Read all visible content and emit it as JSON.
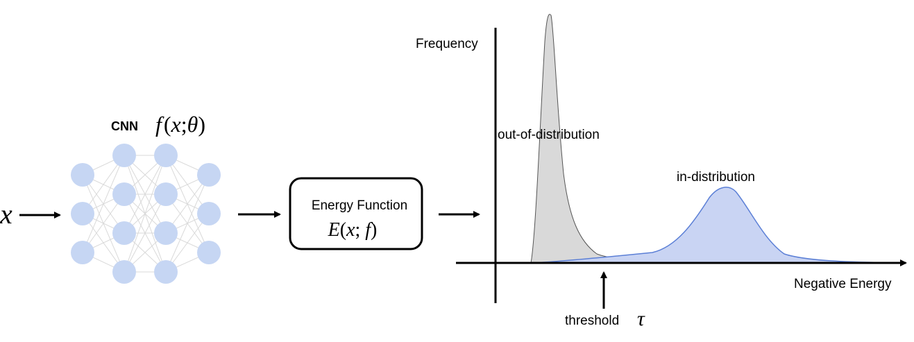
{
  "input": {
    "symbol": "x"
  },
  "network": {
    "label": "CNN",
    "formula": {
      "f": "f",
      "open": "(",
      "x": "x",
      "sep": ";",
      "theta": "θ",
      "close": ")"
    },
    "layers": [
      3,
      4,
      4,
      3
    ],
    "node_color": "#c6d6f3",
    "edge_color": "#d9d9d9"
  },
  "energy_box": {
    "title": "Energy Function",
    "formula": {
      "E": "E",
      "open": "(",
      "x": "x",
      "sep": "; ",
      "f": "f",
      "close": ")"
    }
  },
  "plot": {
    "y_axis_label": "Frequency",
    "x_axis_label": "Negative Energy",
    "ood_label": "out-of-distribution",
    "id_label": "in-distribution",
    "threshold_label": "threshold",
    "threshold_symbol": "τ",
    "ood_fill": "#d9d9d9",
    "id_fill": "#c9d4f3",
    "id_stroke": "#5b7fd6"
  }
}
